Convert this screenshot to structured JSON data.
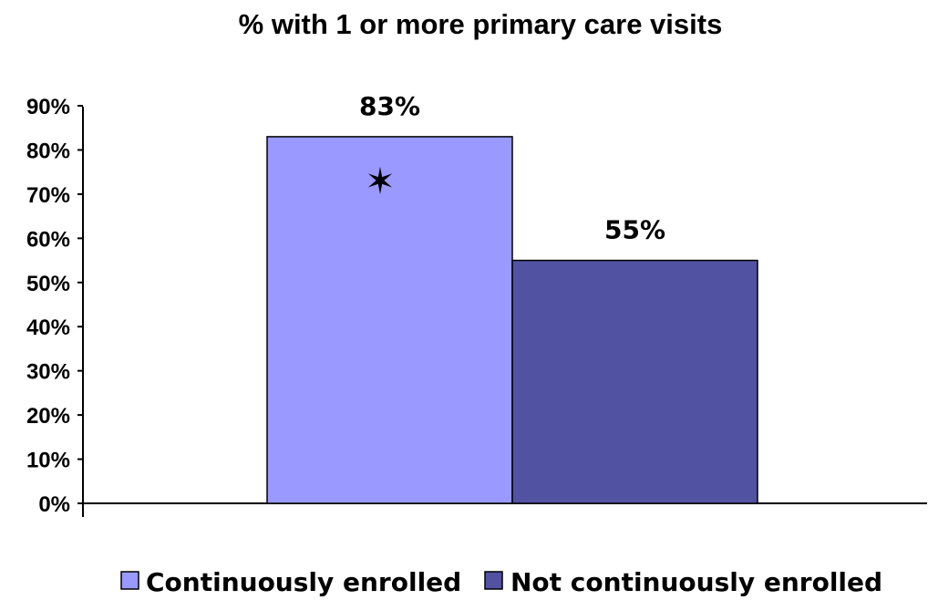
{
  "chart_data": {
    "type": "bar",
    "title": "% with 1 or more primary care visits",
    "xlabel": "",
    "ylabel": "",
    "ylim": [
      0,
      90
    ],
    "y_ticks": [
      "0%",
      "10%",
      "20%",
      "30%",
      "40%",
      "50%",
      "60%",
      "70%",
      "80%",
      "90%"
    ],
    "categories": [
      ""
    ],
    "series": [
      {
        "name": "Continuously enrolled",
        "values": [
          83
        ],
        "label": "83%",
        "color": "#9999ff"
      },
      {
        "name": "Not continuously enrolled",
        "values": [
          55
        ],
        "label": "55%",
        "color": "#5252a3"
      }
    ],
    "annotations": [
      {
        "symbol": "✶",
        "series": 0,
        "meaning": "significance marker"
      }
    ],
    "grid": false,
    "legend": "bottom"
  }
}
